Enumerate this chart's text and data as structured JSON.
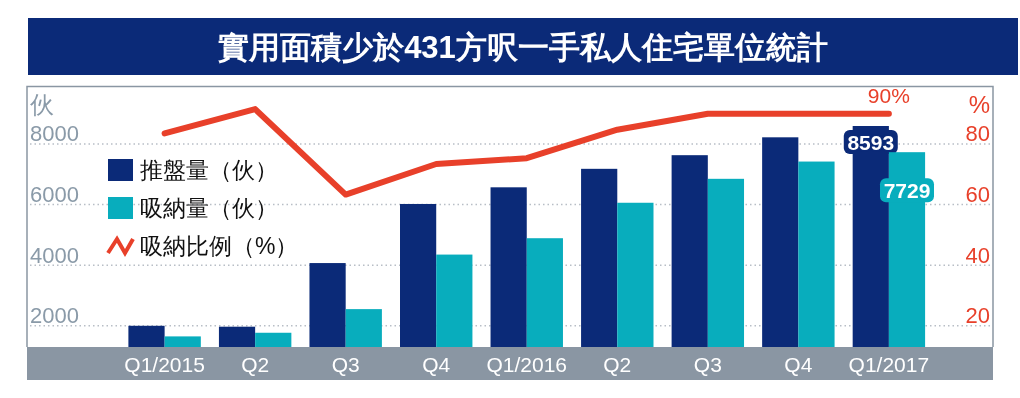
{
  "chart_data": {
    "type": "bar",
    "title": "實用面積少於431方呎一手私人住宅單位統計",
    "ylabel": "伙",
    "y2label": "%",
    "categories": [
      "Q1/2015",
      "Q2",
      "Q3",
      "Q4",
      "Q1/2016",
      "Q2",
      "Q3",
      "Q4",
      "Q1/2017"
    ],
    "series": [
      {
        "name": "推盤量（伙）",
        "color": "#0b2a78",
        "values": [
          2000,
          1970,
          4070,
          6020,
          6570,
          7180,
          7630,
          8220,
          8593
        ],
        "value_labels": [
          null,
          null,
          null,
          null,
          null,
          null,
          null,
          null,
          "8593"
        ]
      },
      {
        "name": "吸納量（伙）",
        "color": "#08adbd",
        "values": [
          1650,
          1770,
          2550,
          4350,
          4890,
          6060,
          6850,
          7420,
          7729
        ],
        "value_labels": [
          null,
          null,
          null,
          null,
          null,
          null,
          null,
          null,
          "7729"
        ]
      },
      {
        "name": "吸納比例（%）",
        "type": "line",
        "axis": "y2",
        "color": "#e8402a",
        "values": [
          83.5,
          91.5,
          63.3,
          73.4,
          75.3,
          84.7,
          90,
          90,
          90
        ],
        "value_labels": [
          null,
          null,
          null,
          null,
          null,
          null,
          null,
          null,
          "90%"
        ]
      }
    ],
    "ylim": [
      1300,
      9900
    ],
    "yticks": [
      2000,
      4000,
      6000,
      8000
    ],
    "y2lim": [
      13,
      99
    ],
    "y2ticks": [
      20,
      40,
      60,
      80
    ],
    "grid": "y",
    "legend": "top left",
    "line_style": "solid"
  }
}
